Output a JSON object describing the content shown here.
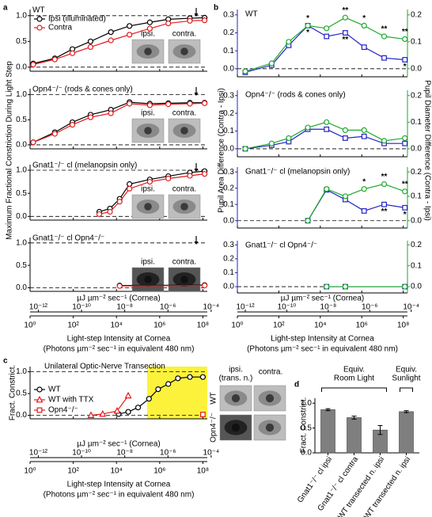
{
  "chart_data": [
    {
      "type": "line",
      "panel_label": "a",
      "ylabel": "Maximum Fractional Constriction During Light Step",
      "xlabel": "Light-step Intensity at Cornea",
      "xlabel_note": "(Photons µm⁻² sec⁻¹ in equivalent 480 nm)",
      "x_log": true,
      "xlim": [
        1,
        160000000
      ],
      "xticks": [
        {
          "value": 1,
          "label": "10⁰"
        },
        {
          "value": 100,
          "label": "10²"
        },
        {
          "value": 10000,
          "label": "10⁴"
        },
        {
          "value": 1000000,
          "label": "10⁶"
        },
        {
          "value": 100000000,
          "label": "10⁸"
        }
      ],
      "x2label": "µJ µm⁻² sec⁻¹ (Cornea)",
      "x2lim": [
        4.14e-13,
        6.62e-05
      ],
      "x2ticks": [
        {
          "value": 1e-12,
          "label": "10⁻¹²"
        },
        {
          "value": 1e-10,
          "label": "10⁻¹⁰"
        },
        {
          "value": 1e-08,
          "label": "10⁻⁸"
        },
        {
          "value": 1e-06,
          "label": "10⁻⁶"
        },
        {
          "value": 0.0001,
          "label": "10⁻⁴"
        }
      ],
      "ylim": [
        -0.08,
        1.12
      ],
      "yticks": [
        {
          "value": 0,
          "label": "0.0"
        },
        0.5,
        {
          "value": 1,
          "label": "1.0"
        }
      ],
      "dashed_lines": [
        0,
        1
      ],
      "subplots": [
        {
          "title": "WT",
          "image_labels": [
            "ipsi.",
            "contra."
          ],
          "x": [
            1.4,
            14,
            91,
            630,
            5500,
            40000,
            350000,
            2500000,
            25000000,
            120000000
          ],
          "series": [
            {
              "name": "Ipsi (illuminated)",
              "color": "#000000",
              "marker": "circle",
              "values": [
                0.07,
                0.17,
                0.35,
                0.5,
                0.68,
                0.8,
                0.87,
                0.93,
                0.95,
                0.96
              ]
            },
            {
              "name": "Contra",
              "color": "#e41a1c",
              "marker": "circle",
              "values": [
                0.05,
                0.15,
                0.27,
                0.39,
                0.52,
                0.63,
                0.75,
                0.85,
                0.9,
                0.91
              ]
            }
          ]
        },
        {
          "title": "Opn4⁻/⁻ (rods & cones only)",
          "image_labels": [
            "ipsi.",
            "contra."
          ],
          "x": [
            1.4,
            14,
            91,
            630,
            5500,
            40000,
            350000,
            2500000,
            25000000,
            120000000
          ],
          "series": [
            {
              "color": "#000000",
              "marker": "circle",
              "values": [
                0.05,
                0.25,
                0.45,
                0.6,
                0.7,
                0.85,
                0.82,
                0.83,
                0.84,
                0.84
              ]
            },
            {
              "color": "#e41a1c",
              "marker": "circle",
              "values": [
                0.05,
                0.22,
                0.4,
                0.55,
                0.63,
                0.82,
                0.79,
                0.81,
                0.82,
                0.83
              ]
            }
          ]
        },
        {
          "title": "Gnat1⁻/⁻ cl (melanopsin only)",
          "image_labels": [
            "ipsi.",
            "contra."
          ],
          "x": [
            1600,
            5000,
            14000,
            40000,
            350000,
            2500000,
            25000000,
            120000000
          ],
          "series": [
            {
              "color": "#000000",
              "marker": "circle",
              "values": [
                0.1,
                0.17,
                0.38,
                0.7,
                0.8,
                0.87,
                0.95,
                0.98
              ]
            },
            {
              "color": "#e41a1c",
              "marker": "circle",
              "values": [
                0.05,
                0.1,
                0.32,
                0.6,
                0.75,
                0.82,
                0.88,
                0.92
              ]
            }
          ]
        },
        {
          "title": "Gnat1⁻/⁻ cl Opn4⁻/⁻",
          "image_labels": [
            "ipsi.",
            "contra."
          ],
          "x": [
            14000,
            120000000
          ],
          "series": [
            {
              "color": "#000000",
              "marker": "circle",
              "values": [
                0.05,
                0.06
              ]
            },
            {
              "color": "#e41a1c",
              "marker": "circle",
              "values": [
                0.04,
                0.05
              ]
            }
          ]
        }
      ]
    },
    {
      "type": "line",
      "panel_label": "b",
      "ylabel": "Pupil Area Difference (Contra - Ipsi)",
      "y2label": "Pupil Diameter Difference (Contra - Ipsi)",
      "xlabel": "Light-step Intensity at Cornea",
      "xlabel_note": "(Photons µm⁻² sec⁻¹ in equivalent 480 nm)",
      "x_log": true,
      "xlim": [
        1,
        160000000
      ],
      "xticks": [
        {
          "value": 1,
          "label": "10⁰"
        },
        {
          "value": 100,
          "label": "10²"
        },
        {
          "value": 10000,
          "label": "10⁴"
        },
        {
          "value": 1000000,
          "label": "10⁶"
        },
        {
          "value": 100000000,
          "label": "10⁸"
        }
      ],
      "x2label": "µJ µm⁻² sec⁻¹ (Cornea)",
      "x2lim": [
        4.14e-13,
        6.62e-05
      ],
      "x2ticks": [
        {
          "value": 1e-12,
          "label": "10⁻¹²"
        },
        {
          "value": 1e-10,
          "label": "10⁻¹⁰"
        },
        {
          "value": 1e-08,
          "label": "10⁻⁸"
        },
        {
          "value": 1e-06,
          "label": "10⁻⁶"
        },
        {
          "value": 0.0001,
          "label": "10⁻⁴"
        }
      ],
      "ylim": [
        -0.045,
        0.33
      ],
      "yticks": [
        {
          "value": 0,
          "label": "0.0"
        },
        0.1,
        0.2,
        0.3
      ],
      "y2lim": [
        -0.03,
        0.22
      ],
      "y2ticks": [
        {
          "value": 0,
          "label": "0.0"
        },
        0.1,
        0.2
      ],
      "dashed_lines": [
        0
      ],
      "subplots": [
        {
          "title": "WT",
          "x": [
            2.4,
            45,
            300,
            2500,
            20000,
            160000,
            1300000,
            12000000,
            120000000
          ],
          "series": [
            {
              "color": "#2323c8",
              "marker": "square",
              "values": [
                -0.02,
                0.02,
                0.13,
                0.24,
                0.18,
                0.2,
                0.12,
                0.06,
                0.05
              ],
              "significance": [
                null,
                null,
                null,
                "*",
                null,
                "**",
                null,
                null,
                "*"
              ]
            },
            {
              "color": "#1faa2e",
              "marker": "circle",
              "axis": "y2",
              "values": [
                -0.01,
                0.02,
                0.1,
                0.16,
                0.15,
                0.19,
                0.16,
                0.12,
                0.11
              ],
              "significance": [
                null,
                null,
                null,
                "*",
                null,
                "**",
                "*",
                "**",
                "**"
              ]
            }
          ]
        },
        {
          "title": "Opn4⁻/⁻ (rods & cones only)",
          "x": [
            2.4,
            45,
            300,
            2500,
            20000,
            160000,
            1300000,
            12000000,
            120000000
          ],
          "series": [
            {
              "color": "#2323c8",
              "marker": "square",
              "values": [
                0.0,
                0.02,
                0.04,
                0.11,
                0.11,
                0.06,
                0.07,
                0.03,
                0.03
              ]
            },
            {
              "color": "#1faa2e",
              "marker": "circle",
              "axis": "y2",
              "values": [
                0.0,
                0.02,
                0.04,
                0.08,
                0.1,
                0.07,
                0.07,
                0.03,
                0.04
              ]
            }
          ]
        },
        {
          "title": "Gnat1⁻/⁻ cl (melanopsin only)",
          "x": [
            2500,
            20000,
            160000,
            1300000,
            12000000,
            120000000
          ],
          "series": [
            {
              "color": "#2323c8",
              "marker": "square",
              "values": [
                0.0,
                0.19,
                0.13,
                0.06,
                0.1,
                0.08
              ],
              "significance": [
                null,
                null,
                null,
                null,
                "**",
                "*"
              ]
            },
            {
              "color": "#1faa2e",
              "marker": "circle",
              "axis": "y2",
              "values": [
                0.0,
                0.13,
                0.1,
                0.13,
                0.15,
                0.12
              ],
              "significance": [
                null,
                null,
                null,
                "*",
                "**",
                "**"
              ]
            }
          ]
        },
        {
          "title": "Gnat1⁻/⁻ cl Opn4⁻/⁻",
          "x": [
            20000,
            160000,
            120000000
          ],
          "series": [
            {
              "color": "#2323c8",
              "marker": "square",
              "values": [
                0.0,
                0.0,
                0.0
              ]
            },
            {
              "color": "#1faa2e",
              "marker": "circle",
              "axis": "y2",
              "values": [
                0.0,
                0.0,
                0.0
              ]
            }
          ]
        }
      ]
    },
    {
      "type": "line",
      "panel_label": "c",
      "title": "Unilateral Optic-Nerve Transection",
      "ylabel": "Fract. Constrict.",
      "xlabel": "Light-step Intensity at Cornea",
      "xlabel_note": "(Photons µm⁻² sec⁻¹ in equivalent 480 nm)",
      "x_log": true,
      "xlim": [
        1,
        160000000
      ],
      "xticks": [
        {
          "value": 1,
          "label": "10⁰"
        },
        {
          "value": 100,
          "label": "10²"
        },
        {
          "value": 10000,
          "label": "10⁴"
        },
        {
          "value": 1000000,
          "label": "10⁶"
        },
        {
          "value": 100000000,
          "label": "10⁸"
        }
      ],
      "x2label": "µJ µm⁻² sec⁻¹ (Cornea)",
      "x2lim": [
        4.14e-13,
        6.62e-05
      ],
      "x2ticks": [
        {
          "value": 1e-12,
          "label": "10⁻¹²"
        },
        {
          "value": 1e-10,
          "label": "10⁻¹⁰"
        },
        {
          "value": 1e-08,
          "label": "10⁻⁸"
        },
        {
          "value": 1e-06,
          "label": "10⁻⁶"
        },
        {
          "value": 0.0001,
          "label": "10⁻⁴"
        }
      ],
      "ylim": [
        -0.08,
        1.12
      ],
      "yticks": [
        {
          "value": 0,
          "label": "0.0"
        },
        0.5,
        {
          "value": 1,
          "label": "1.0"
        }
      ],
      "dashed_lines": [
        0,
        1
      ],
      "shaded_xrange": [
        260000,
        160000000
      ],
      "shaded_color": "#fcf23c",
      "series": [
        {
          "name": "WT",
          "color": "#000000",
          "marker": "circle",
          "x": [
            12600,
            35000,
            100000,
            320000,
            850000,
            2500000,
            7000000,
            25000000,
            100000000
          ],
          "values": [
            0.03,
            0.08,
            0.18,
            0.38,
            0.6,
            0.72,
            0.85,
            0.88,
            0.88
          ]
        },
        {
          "name": "WT with TTX",
          "color": "#e41a1c",
          "marker": "triangle",
          "x": [
            660,
            2300,
            10700,
            35000
          ],
          "values": [
            0.0,
            0.03,
            0.1,
            0.45
          ]
        },
        {
          "name": "Opn4⁻/⁻",
          "color": "#e41a1c",
          "marker": "square",
          "x": [
            100000000
          ],
          "values": [
            0.02
          ]
        }
      ],
      "image_columns": [
        [
          "ipsi.",
          "(trans. n.)"
        ],
        [
          "contra."
        ]
      ],
      "image_rows": [
        "WT",
        "Opn4⁻/⁻"
      ]
    },
    {
      "type": "bar",
      "panel_label": "d",
      "ylabel": "Fract. Constrict.",
      "categories": [
        "Gnat1⁻/⁻ cl ipsi",
        "Gnat1⁻/⁻ cl contra",
        "WT transected n. ipsi",
        "WT transected n. ipsi"
      ],
      "values": [
        0.87,
        0.71,
        0.46,
        0.83
      ],
      "errors": [
        0.02,
        0.03,
        0.09,
        0.02
      ],
      "color": "#7f7f7f",
      "ylim": [
        0,
        1.1
      ],
      "yticks": [
        {
          "value": 0,
          "label": "0.0"
        },
        0.5,
        {
          "value": 1,
          "label": "1.0"
        }
      ],
      "groups": [
        [
          "Equiv.",
          "Room Light"
        ],
        [
          "Equiv.",
          "Sunlight"
        ]
      ]
    }
  ]
}
